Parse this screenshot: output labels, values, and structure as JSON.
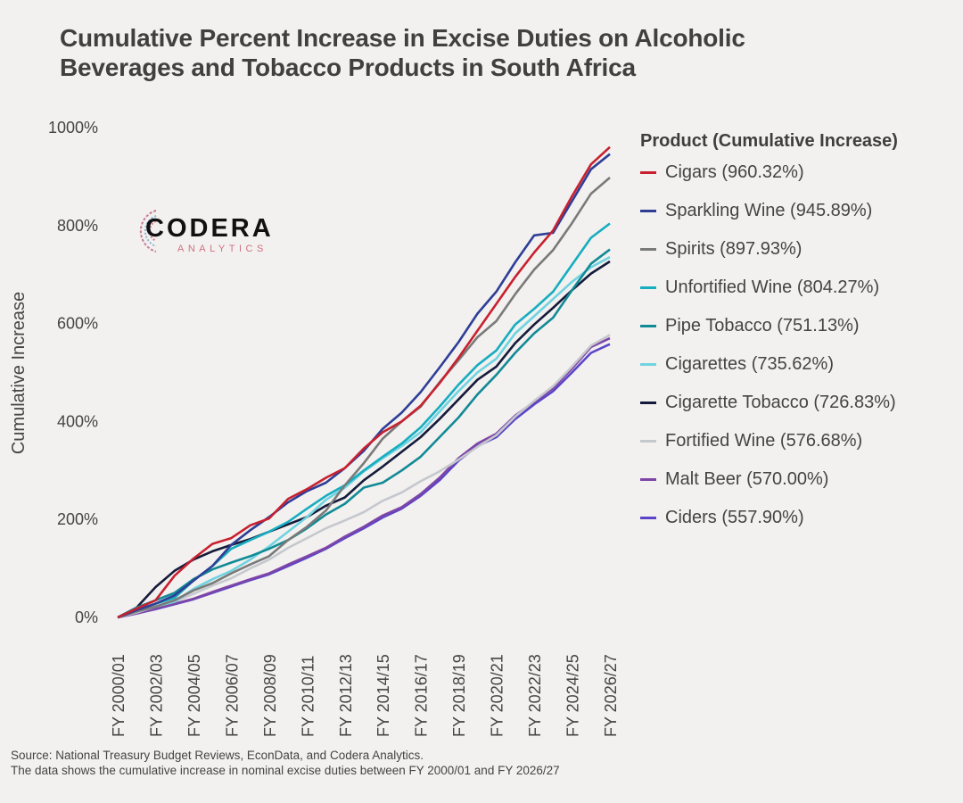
{
  "title": "Cumulative Percent Increase in Excise Duties on Alcoholic Beverages and Tobacco Products in South Africa",
  "logo": {
    "name": "CODERA",
    "sub": "ANALYTICS"
  },
  "source_lines": [
    "Source: National Treasury Budget Reviews, EconData, and Codera Analytics.",
    "The data shows the cumulative increase in nominal excise duties between FY 2000/01 and FY 2026/27"
  ],
  "chart_data": {
    "type": "line",
    "title": "Cumulative Percent Increase in Excise Duties on Alcoholic Beverages and Tobacco Products in South Africa",
    "xlabel": "",
    "ylabel": "Cumulative Increase",
    "ylim": [
      0,
      1000
    ],
    "yticks": [
      0,
      200,
      400,
      600,
      800,
      1000
    ],
    "ytick_labels": [
      "0%",
      "200%",
      "400%",
      "600%",
      "800%",
      "1000%"
    ],
    "grid": false,
    "legend_title": "Product (Cumulative Increase)",
    "legend_position": "right",
    "x": [
      "FY 2000/01",
      "FY 2001/02",
      "FY 2002/03",
      "FY 2003/04",
      "FY 2004/05",
      "FY 2005/06",
      "FY 2006/07",
      "FY 2007/08",
      "FY 2008/09",
      "FY 2009/10",
      "FY 2010/11",
      "FY 2011/12",
      "FY 2012/13",
      "FY 2013/14",
      "FY 2014/15",
      "FY 2015/16",
      "FY 2016/17",
      "FY 2017/18",
      "FY 2018/19",
      "FY 2019/20",
      "FY 2020/21",
      "FY 2021/22",
      "FY 2022/23",
      "FY 2023/24",
      "FY 2024/25",
      "FY 2025/26",
      "FY 2026/27"
    ],
    "xtick_labels": [
      "FY 2000/01",
      "FY 2002/03",
      "FY 2004/05",
      "FY 2006/07",
      "FY 2008/09",
      "FY 2010/11",
      "FY 2012/13",
      "FY 2014/15",
      "FY 2016/17",
      "FY 2018/19",
      "FY 2020/21",
      "FY 2022/23",
      "FY 2024/25",
      "FY 2026/27"
    ],
    "series": [
      {
        "name": "Cigars",
        "legend": "Cigars (960.32%)",
        "color": "#c8202f",
        "values": [
          0,
          18,
          35,
          85,
          120,
          150,
          162,
          188,
          202,
          242,
          262,
          285,
          305,
          345,
          378,
          400,
          432,
          478,
          530,
          585,
          640,
          695,
          745,
          790,
          860,
          925,
          960.32
        ]
      },
      {
        "name": "Sparkling Wine",
        "legend": "Sparkling Wine (945.89%)",
        "color": "#2e3e96",
        "values": [
          0,
          15,
          28,
          45,
          75,
          105,
          148,
          178,
          205,
          235,
          258,
          275,
          305,
          340,
          385,
          418,
          460,
          510,
          562,
          620,
          665,
          725,
          780,
          785,
          850,
          915,
          945.89
        ]
      },
      {
        "name": "Spirits",
        "legend": "Spirits (897.93%)",
        "color": "#7a7a7a",
        "values": [
          0,
          12,
          22,
          35,
          55,
          70,
          90,
          108,
          125,
          158,
          185,
          218,
          270,
          315,
          365,
          400,
          430,
          480,
          525,
          572,
          605,
          660,
          710,
          750,
          805,
          865,
          897.93
        ]
      },
      {
        "name": "Unfortified Wine",
        "legend": "Unfortified Wine (804.27%)",
        "color": "#17adc0",
        "values": [
          0,
          15,
          28,
          40,
          75,
          105,
          140,
          158,
          175,
          195,
          222,
          248,
          270,
          300,
          328,
          355,
          388,
          430,
          475,
          515,
          545,
          598,
          630,
          665,
          720,
          775,
          804.27
        ]
      },
      {
        "name": "Pipe Tobacco",
        "legend": "Pipe Tobacco (751.13%)",
        "color": "#128a96",
        "values": [
          0,
          20,
          35,
          50,
          78,
          98,
          112,
          125,
          140,
          158,
          182,
          210,
          232,
          265,
          275,
          300,
          328,
          368,
          408,
          455,
          495,
          540,
          580,
          612,
          668,
          722,
          751.13
        ]
      },
      {
        "name": "Cigarettes",
        "legend": "Cigarettes (735.62%)",
        "color": "#6fd3e0",
        "values": [
          0,
          12,
          22,
          32,
          58,
          78,
          95,
          118,
          145,
          175,
          205,
          240,
          265,
          298,
          325,
          350,
          378,
          420,
          462,
          500,
          528,
          580,
          615,
          650,
          685,
          715,
          735.62
        ]
      },
      {
        "name": "Cigarette Tobacco",
        "legend": "Cigarette Tobacco (726.83%)",
        "color": "#151a3a",
        "values": [
          0,
          20,
          62,
          95,
          118,
          135,
          148,
          160,
          175,
          190,
          205,
          228,
          245,
          280,
          308,
          338,
          368,
          405,
          445,
          485,
          512,
          560,
          598,
          632,
          668,
          702,
          726.83
        ]
      },
      {
        "name": "Fortified Wine",
        "legend": "Fortified Wine (576.68%)",
        "color": "#c5c8cd",
        "values": [
          0,
          10,
          22,
          32,
          48,
          65,
          80,
          100,
          118,
          142,
          162,
          182,
          198,
          215,
          238,
          255,
          278,
          298,
          322,
          348,
          372,
          410,
          442,
          472,
          512,
          555,
          576.68
        ]
      },
      {
        "name": "Malt Beer",
        "legend": "Malt Beer (570.00%)",
        "color": "#7e45a6",
        "values": [
          0,
          8,
          18,
          28,
          38,
          52,
          65,
          78,
          90,
          108,
          125,
          142,
          165,
          185,
          208,
          225,
          252,
          285,
          325,
          355,
          375,
          412,
          440,
          468,
          508,
          552,
          570.0
        ]
      },
      {
        "name": "Ciders",
        "legend": "Ciders (557.90%)",
        "color": "#5a45c8",
        "values": [
          0,
          8,
          17,
          27,
          37,
          50,
          63,
          76,
          88,
          105,
          122,
          140,
          162,
          182,
          204,
          222,
          248,
          280,
          320,
          350,
          368,
          405,
          435,
          462,
          500,
          540,
          557.9
        ]
      }
    ]
  }
}
